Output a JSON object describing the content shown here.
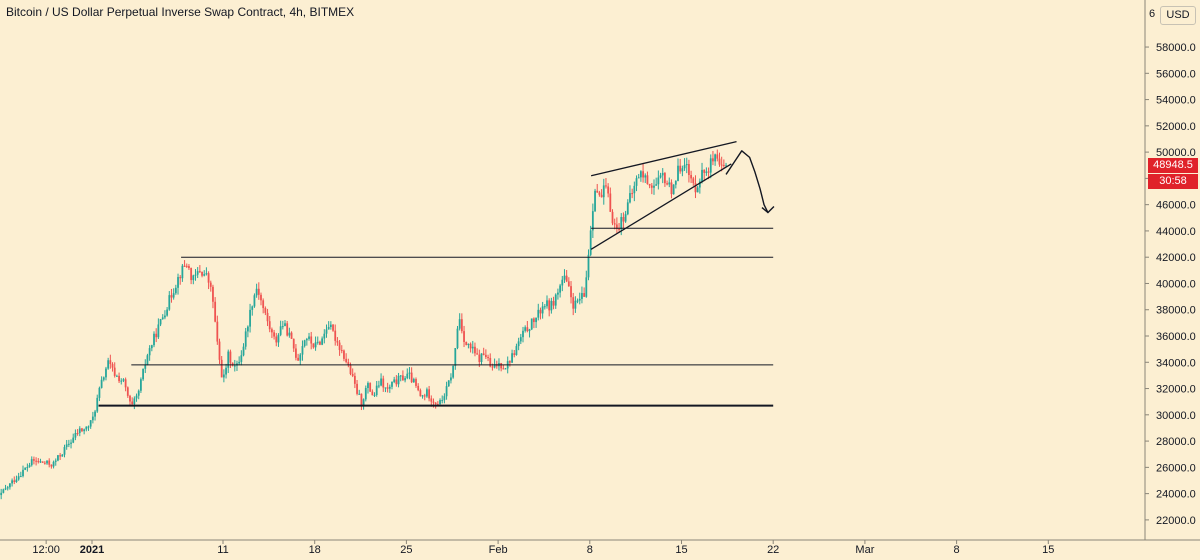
{
  "header": {
    "title": "Bitcoin / US Dollar Perpetual Inverse Swap Contract, 4h, BITMEX",
    "currency_button": "USD",
    "top_price_partial": "6"
  },
  "price_labels": {
    "last_price": "48948.5",
    "countdown": "30:58"
  },
  "colors": {
    "background": "#fcefd2",
    "up_candle": "#26a69a",
    "down_candle": "#ef5350",
    "price_tag": "#e0222a",
    "drawing_lines": "#131722"
  },
  "chart_data": {
    "type": "candlestick",
    "symbol": "XBTUSD",
    "timeframe": "4h",
    "exchange": "BITMEX",
    "ylim": [
      20500,
      61000
    ],
    "y_ticks": [
      "22000.0",
      "24000.0",
      "26000.0",
      "28000.0",
      "30000.0",
      "32000.0",
      "34000.0",
      "36000.0",
      "38000.0",
      "40000.0",
      "42000.0",
      "44000.0",
      "46000.0",
      "48000.0",
      "50000.0",
      "52000.0",
      "54000.0",
      "56000.0",
      "58000.0"
    ],
    "x_labels": [
      "12:00",
      "2021",
      "11",
      "18",
      "25",
      "Feb",
      "8",
      "15",
      "22",
      "Mar",
      "8",
      "15"
    ],
    "x_label_day_offsets": [
      -3.5,
      0,
      10,
      17,
      24,
      31,
      38,
      45,
      52,
      59,
      66,
      73
    ],
    "price_path": [
      [
        -7.6,
        23200
      ],
      [
        -6,
        25000
      ],
      [
        -4.5,
        26500
      ],
      [
        -3,
        26200
      ],
      [
        -2,
        27500
      ],
      [
        -1,
        28800
      ],
      [
        -0.5,
        28900
      ],
      [
        0,
        29500
      ],
      [
        0.6,
        32000
      ],
      [
        1.2,
        34000
      ],
      [
        1.8,
        33000
      ],
      [
        2.4,
        32500
      ],
      [
        3,
        30500
      ],
      [
        3.5,
        31500
      ],
      [
        4.2,
        34500
      ],
      [
        5,
        36500
      ],
      [
        5.8,
        38500
      ],
      [
        6.6,
        40500
      ],
      [
        7.2,
        41600
      ],
      [
        7.7,
        40200
      ],
      [
        8.2,
        41000
      ],
      [
        8.8,
        40500
      ],
      [
        9.2,
        39000
      ],
      [
        9.6,
        35000
      ],
      [
        10,
        32500
      ],
      [
        10.4,
        34500
      ],
      [
        11,
        33500
      ],
      [
        11.5,
        35000
      ],
      [
        12.2,
        38500
      ],
      [
        12.6,
        39800
      ],
      [
        13.1,
        38000
      ],
      [
        13.6,
        36500
      ],
      [
        14,
        35500
      ],
      [
        14.5,
        37000
      ],
      [
        15,
        36200
      ],
      [
        15.7,
        34200
      ],
      [
        16.3,
        36000
      ],
      [
        17,
        35200
      ],
      [
        17.6,
        35800
      ],
      [
        18,
        37000
      ],
      [
        18.6,
        35800
      ],
      [
        19.1,
        34800
      ],
      [
        19.6,
        33600
      ],
      [
        20.2,
        31800
      ],
      [
        20.6,
        30900
      ],
      [
        21,
        32300
      ],
      [
        21.5,
        31400
      ],
      [
        22,
        32600
      ],
      [
        22.5,
        31800
      ],
      [
        23,
        32400
      ],
      [
        23.6,
        32800
      ],
      [
        24.2,
        33000
      ],
      [
        24.6,
        32400
      ],
      [
        25.1,
        31300
      ],
      [
        25.6,
        31700
      ],
      [
        26.1,
        31000
      ],
      [
        26.6,
        30900
      ],
      [
        27.1,
        32000
      ],
      [
        27.6,
        33700
      ],
      [
        28,
        37600
      ],
      [
        28.5,
        35400
      ],
      [
        29,
        35000
      ],
      [
        29.5,
        34200
      ],
      [
        30,
        34700
      ],
      [
        30.5,
        33400
      ],
      [
        31,
        33900
      ],
      [
        31.6,
        33700
      ],
      [
        32.2,
        34700
      ],
      [
        32.8,
        36000
      ],
      [
        33.4,
        36800
      ],
      [
        34,
        37500
      ],
      [
        34.5,
        38500
      ],
      [
        35,
        38200
      ],
      [
        35.5,
        39200
      ],
      [
        36,
        40500
      ],
      [
        36.4,
        39500
      ],
      [
        36.8,
        38200
      ],
      [
        37.2,
        38800
      ],
      [
        37.6,
        39000
      ],
      [
        38,
        43500
      ],
      [
        38.4,
        47500
      ],
      [
        38.8,
        46300
      ],
      [
        39.2,
        47400
      ],
      [
        39.6,
        45500
      ],
      [
        40,
        44000
      ],
      [
        40.6,
        45200
      ],
      [
        41.2,
        46800
      ],
      [
        41.8,
        48500
      ],
      [
        42.4,
        47800
      ],
      [
        43,
        47300
      ],
      [
        43.6,
        48200
      ],
      [
        44.2,
        47100
      ],
      [
        44.8,
        48700
      ],
      [
        45.2,
        49500
      ],
      [
        45.6,
        48100
      ],
      [
        46,
        47200
      ],
      [
        46.5,
        48300
      ],
      [
        47,
        48800
      ],
      [
        47.5,
        49500
      ],
      [
        48,
        48600
      ],
      [
        48.5,
        48948.5
      ]
    ],
    "horizontal_levels": [
      {
        "price": 30700,
        "from_day": 0.5,
        "to_day": 52,
        "weight": "thick"
      },
      {
        "price": 33800,
        "from_day": 3,
        "to_day": 52,
        "weight": "thin"
      },
      {
        "price": 42000,
        "from_day": 6.8,
        "to_day": 52,
        "weight": "thin"
      },
      {
        "price": 44200,
        "from_day": 38.1,
        "to_day": 52,
        "weight": "thin"
      }
    ],
    "rising_wedge": {
      "upper": [
        [
          38.1,
          48200
        ],
        [
          49.2,
          50800
        ]
      ],
      "lower": [
        [
          38.1,
          42600
        ],
        [
          48.8,
          49100
        ]
      ]
    },
    "projection_arrow": [
      [
        48.4,
        48300
      ],
      [
        49,
        49200
      ],
      [
        49.6,
        50100
      ],
      [
        50.2,
        49600
      ],
      [
        50.6,
        48500
      ],
      [
        51,
        47200
      ],
      [
        51.3,
        46000
      ],
      [
        51.6,
        45400
      ]
    ]
  }
}
